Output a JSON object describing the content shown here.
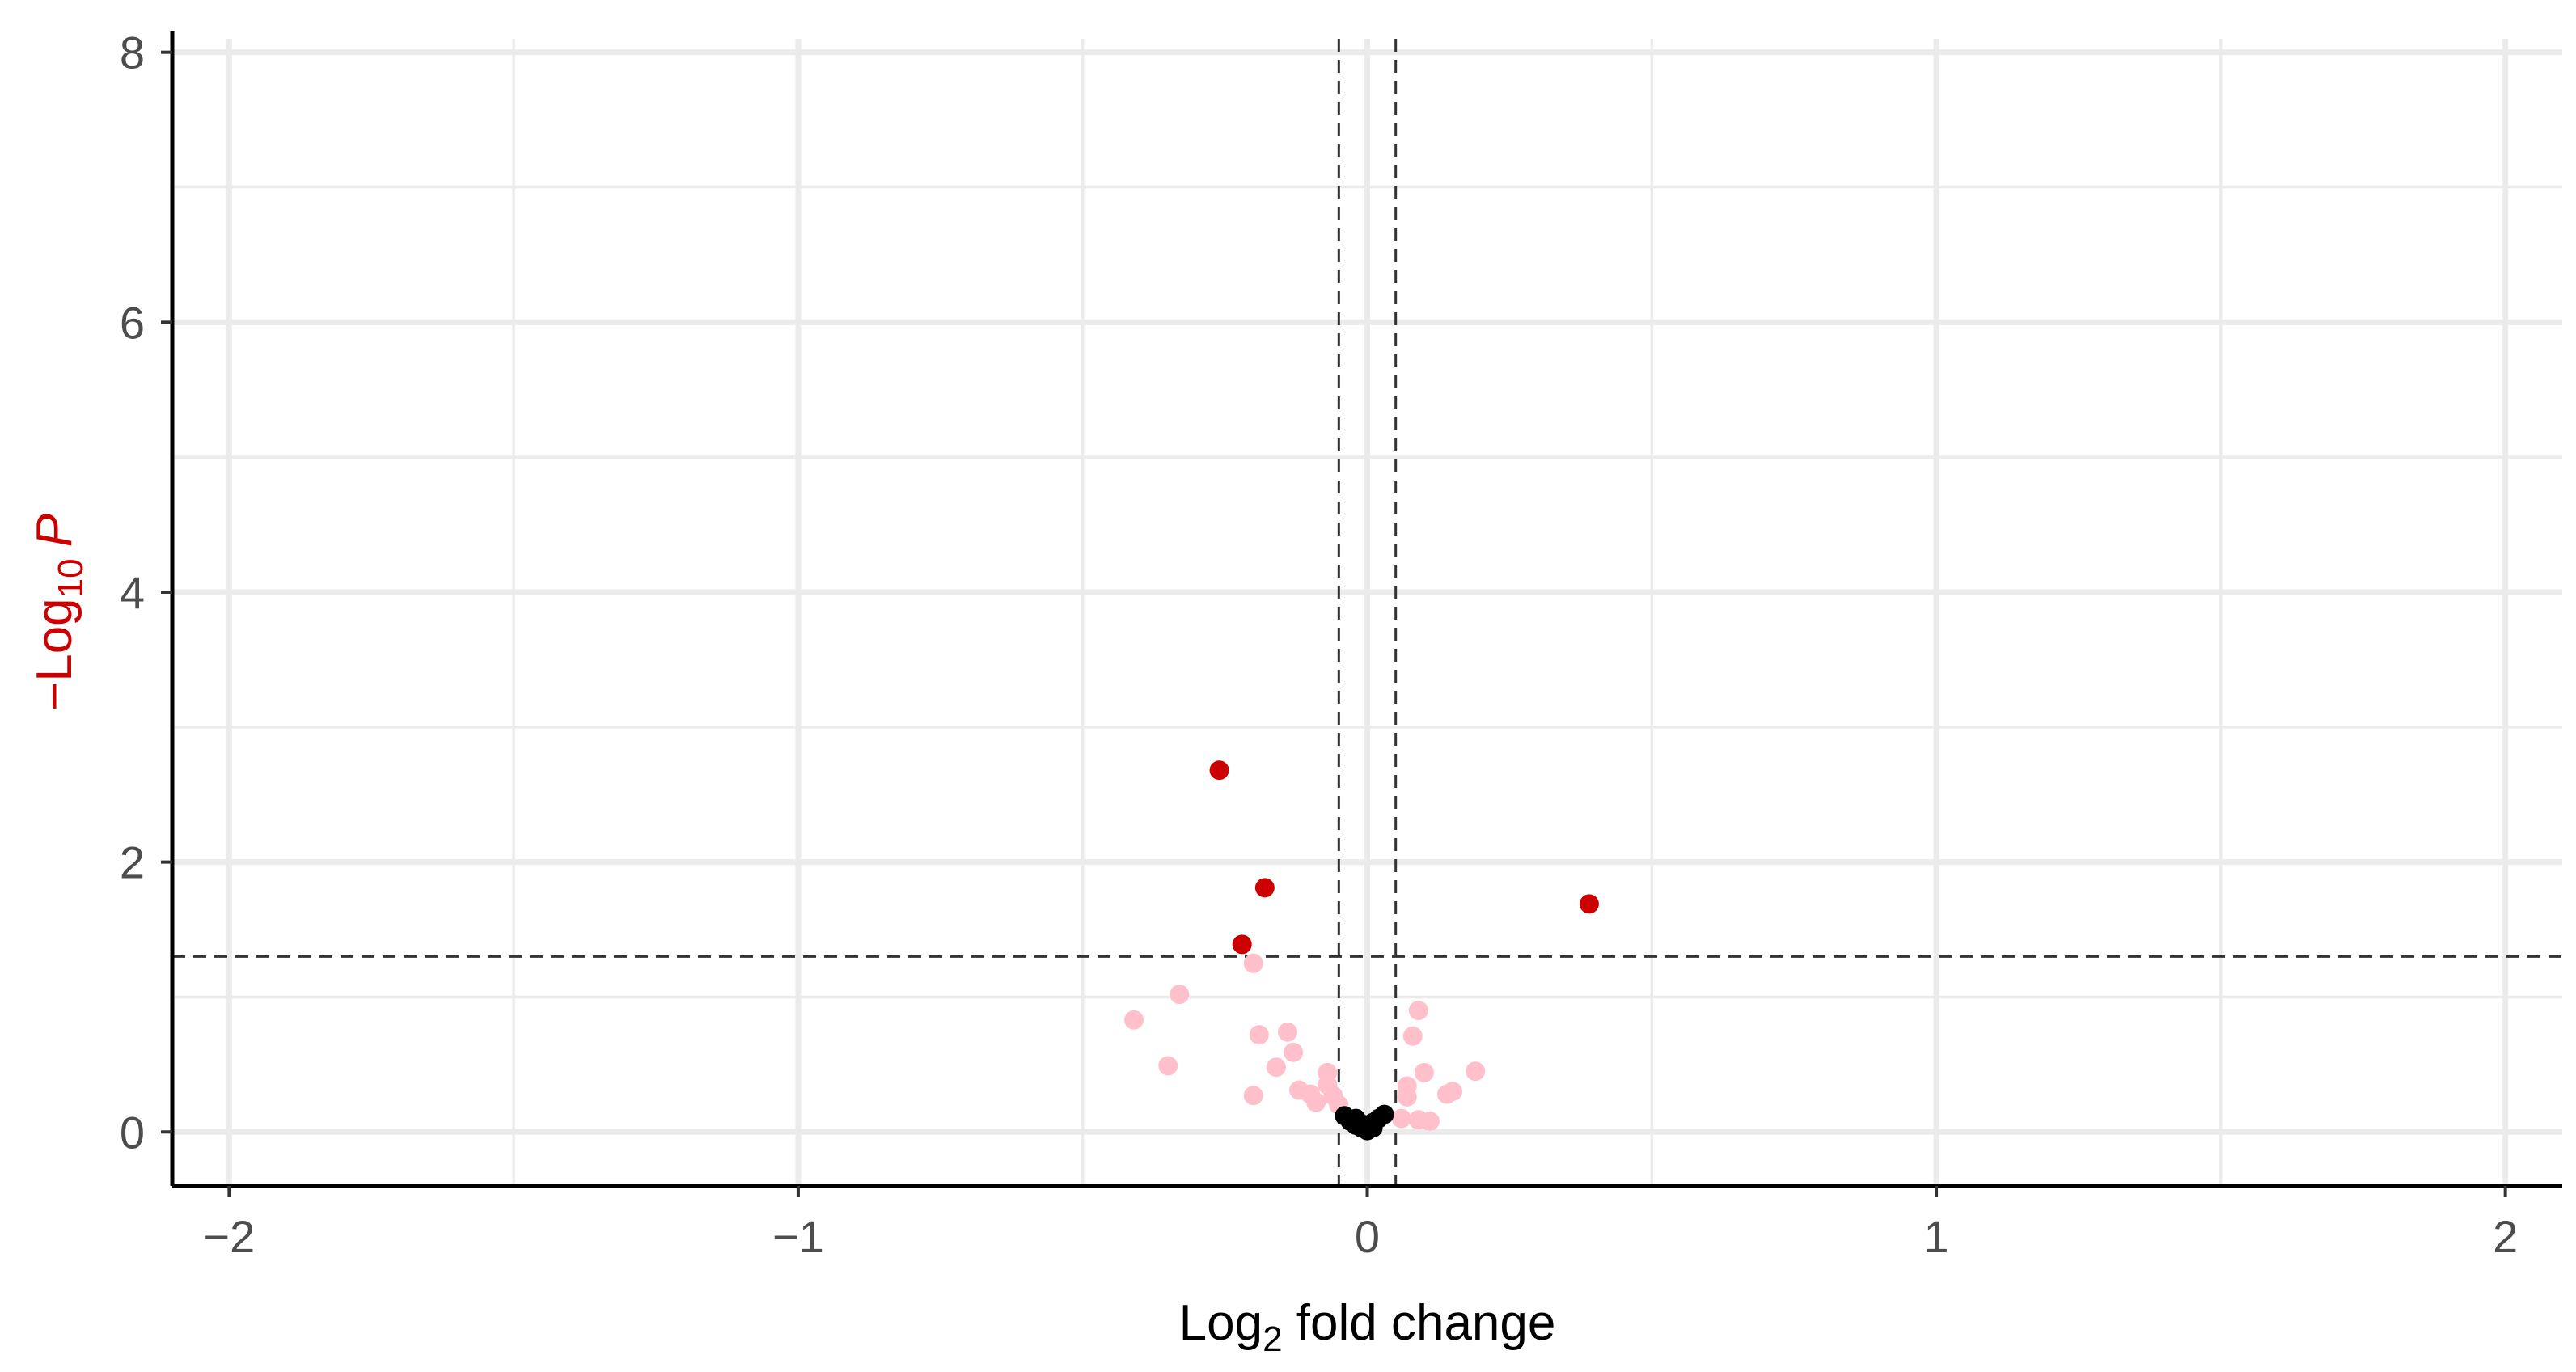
{
  "chart_data": {
    "type": "scatter",
    "title": "",
    "xlabel": "Log2 fold change",
    "xlabel_parts": {
      "base": "Log",
      "sub": "2",
      "rest": " fold change"
    },
    "ylabel": "−Log10 P",
    "ylabel_parts": {
      "prefix": "−Log",
      "sub": "10",
      "italic": "P"
    },
    "xlim": [
      -2.1,
      2.1
    ],
    "ylim": [
      -0.4,
      8.1
    ],
    "x_ticks": [
      -2,
      -1,
      0,
      1,
      2
    ],
    "x_tick_labels": [
      "−2",
      "−1",
      "0",
      "1",
      "2"
    ],
    "y_ticks": [
      0,
      2,
      4,
      6,
      8
    ],
    "y_tick_labels": [
      "0",
      "2",
      "4",
      "6",
      "8"
    ],
    "grid": true,
    "cutoffs": {
      "fold_change": [
        -0.05,
        0.05
      ],
      "p_value_neglog10": 1.3
    },
    "colors": {
      "significant": "#cc0000",
      "pvalue_only": "#ffc0cb",
      "not_significant": "#000000",
      "ylabel": "#cc0000"
    },
    "series": [
      {
        "color": "#cc0000",
        "points": [
          {
            "x": -0.26,
            "y": 2.68
          },
          {
            "x": -0.18,
            "y": 1.81
          },
          {
            "x": -0.22,
            "y": 1.39
          },
          {
            "x": 0.39,
            "y": 1.69
          }
        ]
      },
      {
        "color": "#ffc0cb",
        "points": [
          {
            "x": -0.41,
            "y": 0.83
          },
          {
            "x": -0.33,
            "y": 1.02
          },
          {
            "x": -0.35,
            "y": 0.49
          },
          {
            "x": -0.2,
            "y": 1.25
          },
          {
            "x": -0.19,
            "y": 0.72
          },
          {
            "x": -0.2,
            "y": 0.27
          },
          {
            "x": -0.14,
            "y": 0.74
          },
          {
            "x": -0.13,
            "y": 0.59
          },
          {
            "x": -0.16,
            "y": 0.48
          },
          {
            "x": -0.12,
            "y": 0.31
          },
          {
            "x": -0.1,
            "y": 0.28
          },
          {
            "x": -0.09,
            "y": 0.22
          },
          {
            "x": -0.07,
            "y": 0.44
          },
          {
            "x": -0.07,
            "y": 0.35
          },
          {
            "x": -0.06,
            "y": 0.27
          },
          {
            "x": -0.05,
            "y": 0.2
          },
          {
            "x": 0.09,
            "y": 0.9
          },
          {
            "x": 0.08,
            "y": 0.71
          },
          {
            "x": 0.1,
            "y": 0.44
          },
          {
            "x": 0.07,
            "y": 0.34
          },
          {
            "x": 0.07,
            "y": 0.26
          },
          {
            "x": 0.19,
            "y": 0.45
          },
          {
            "x": 0.15,
            "y": 0.3
          },
          {
            "x": 0.14,
            "y": 0.28
          },
          {
            "x": 0.06,
            "y": 0.1
          },
          {
            "x": 0.09,
            "y": 0.09
          },
          {
            "x": 0.11,
            "y": 0.08
          }
        ]
      },
      {
        "color": "#000000",
        "points": [
          {
            "x": -0.04,
            "y": 0.12
          },
          {
            "x": -0.03,
            "y": 0.08
          },
          {
            "x": -0.02,
            "y": 0.1
          },
          {
            "x": -0.02,
            "y": 0.05
          },
          {
            "x": -0.01,
            "y": 0.03
          },
          {
            "x": 0.0,
            "y": 0.01
          },
          {
            "x": 0.0,
            "y": 0.04
          },
          {
            "x": 0.01,
            "y": 0.03
          },
          {
            "x": 0.01,
            "y": 0.07
          },
          {
            "x": 0.02,
            "y": 0.1
          },
          {
            "x": 0.03,
            "y": 0.13
          },
          {
            "x": -0.01,
            "y": 0.06
          }
        ]
      }
    ]
  }
}
